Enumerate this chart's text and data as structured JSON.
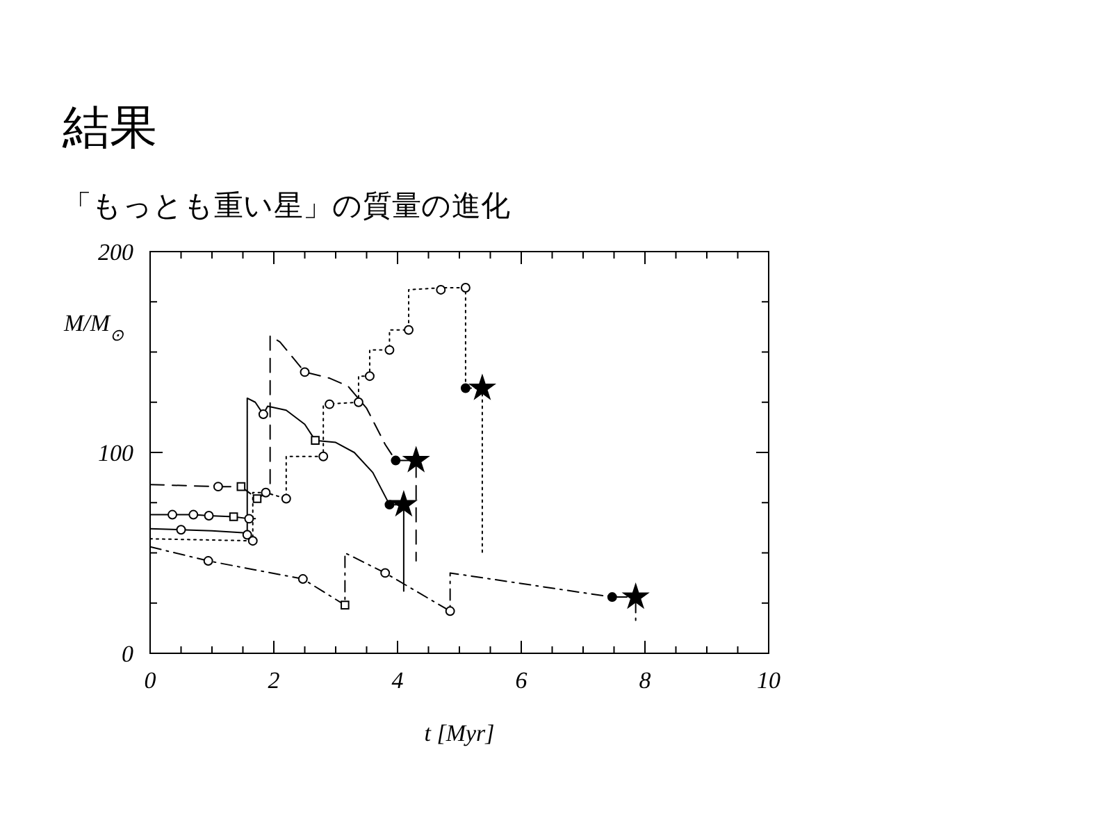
{
  "chart_data": {
    "type": "line",
    "title": "結果",
    "subtitle": "「もっとも重い星」の質量の進化",
    "xlabel": "t [Myr]",
    "ylabel": "M/M$_{⊙}$",
    "xlim": [
      0,
      10
    ],
    "ylim": [
      0,
      200
    ],
    "xticks": [
      0,
      {
        "value": 0.5,
        "label": null
      },
      {
        "value": 1,
        "label": null
      },
      {
        "value": 1.5,
        "label": null
      },
      2,
      {
        "value": 2.5,
        "label": null
      },
      {
        "value": 3,
        "label": null
      },
      {
        "value": 3.5,
        "label": null
      },
      4,
      {
        "value": 4.5,
        "label": null
      },
      {
        "value": 5,
        "label": null
      },
      {
        "value": 5.5,
        "label": null
      },
      6,
      {
        "value": 6.5,
        "label": null
      },
      {
        "value": 7,
        "label": null
      },
      {
        "value": 7.5,
        "label": null
      },
      8,
      {
        "value": 8.5,
        "label": null
      },
      {
        "value": 9,
        "label": null
      },
      {
        "value": 9.5,
        "label": null
      },
      10
    ],
    "yticks": [
      0,
      {
        "value": 25,
        "label": null
      },
      {
        "value": 50,
        "label": null
      },
      {
        "value": 75,
        "label": null
      },
      100,
      {
        "value": 125,
        "label": null
      },
      {
        "value": 150,
        "label": null
      },
      {
        "value": 175,
        "label": null
      },
      200
    ],
    "grid": false,
    "series": [
      {
        "line_style": "solid",
        "marker": "none",
        "color": "#000000",
        "x": [
          0,
          0.5,
          1,
          1.5,
          1.57,
          1.57,
          1.7,
          1.83,
          1.9,
          2.2,
          2.5,
          2.67,
          3.0,
          3.3,
          3.6,
          3.87,
          4.1,
          4.1
        ],
        "values": [
          62,
          61.5,
          61,
          60,
          59,
          127,
          125,
          119,
          123,
          121,
          114,
          106,
          105,
          100,
          90,
          74,
          74,
          31
        ]
      },
      {
        "line_style": "solid",
        "marker": "none",
        "color": "#000000",
        "x": [
          0,
          0.36,
          0.7,
          0.95,
          1.35,
          1.6,
          1.7
        ],
        "values": [
          69,
          69,
          69,
          68.5,
          68,
          67,
          67
        ]
      },
      {
        "line_style": "dashed",
        "marker": "none",
        "color": "#000000",
        "x": [
          0,
          1.1,
          1.47,
          1.73,
          1.94,
          1.94,
          2.1,
          2.5,
          2.9,
          3.2,
          3.5,
          3.8,
          3.97,
          4.3,
          4.3
        ],
        "values": [
          84,
          83,
          83,
          77,
          81,
          158,
          155,
          140,
          137,
          133,
          122,
          104,
          96,
          96,
          46
        ]
      },
      {
        "line_style": "dotted",
        "marker": "none",
        "color": "#000000",
        "x": [
          0,
          1.66,
          1.66,
          1.87,
          2.2,
          2.2,
          2.8,
          2.8,
          3.37,
          3.37,
          3.55,
          3.55,
          3.87,
          3.87,
          4.18,
          4.18,
          4.7,
          5.1,
          5.1,
          5.37,
          5.37
        ],
        "values": [
          57,
          56,
          80,
          80,
          77,
          98,
          98,
          124,
          125,
          138,
          138,
          151,
          151,
          161,
          161,
          181,
          182,
          182,
          132,
          132,
          50
        ]
      },
      {
        "line_style": "dashdot",
        "marker": "none",
        "color": "#000000",
        "x": [
          0,
          0.94,
          2.47,
          3.15,
          3.15,
          3.8,
          4.85,
          4.85,
          7.47,
          7.85,
          7.85
        ],
        "values": [
          53,
          46,
          37,
          24,
          50,
          40,
          21,
          40,
          28,
          28,
          16
        ]
      },
      {
        "type": "scatter",
        "marker": "circle",
        "color": "#ffffff",
        "x": [
          0.36,
          0.5,
          0.7,
          0.94,
          0.95,
          1.1,
          1.57,
          1.6,
          1.66,
          1.83,
          1.87,
          2.2,
          2.47,
          2.5,
          2.8,
          2.9,
          3.37,
          3.55,
          3.8,
          3.87,
          4.18,
          4.7,
          4.85,
          5.1
        ],
        "values": [
          69,
          61.5,
          69,
          46,
          68.5,
          83,
          59,
          67,
          56,
          119,
          80,
          77,
          37,
          140,
          98,
          124,
          125,
          138,
          40,
          151,
          161,
          181,
          21,
          182
        ]
      },
      {
        "type": "scatter",
        "marker": "square",
        "color": "#ffffff",
        "x": [
          1.35,
          1.47,
          1.73,
          2.67,
          3.15
        ],
        "values": [
          68,
          83,
          77,
          106,
          24
        ]
      },
      {
        "type": "scatter",
        "marker": "circle",
        "color": "#000000",
        "x": [
          3.87,
          3.97,
          5.1,
          7.47
        ],
        "values": [
          74,
          96,
          132,
          28
        ]
      },
      {
        "type": "scatter",
        "marker": "star",
        "color": "#000000",
        "x": [
          4.1,
          4.3,
          5.37,
          7.85
        ],
        "values": [
          74,
          96,
          132,
          28
        ]
      }
    ]
  }
}
